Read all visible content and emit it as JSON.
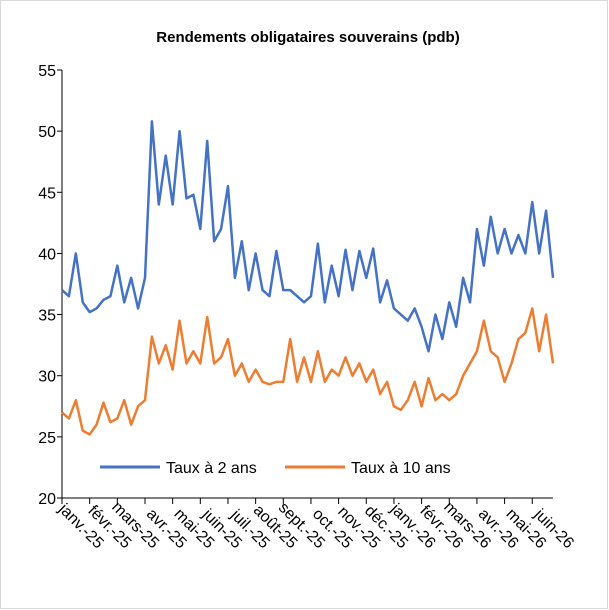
{
  "chart_data": {
    "type": "line",
    "title": "Rendements obligataires souverains (pdb)",
    "categories": [
      "janv.-25",
      null,
      null,
      null,
      "févr.-25",
      null,
      null,
      null,
      "mars-25",
      null,
      null,
      null,
      "avr.-25",
      null,
      null,
      null,
      "mai-25",
      null,
      null,
      null,
      "juin-25",
      null,
      null,
      null,
      "juil.-25",
      null,
      null,
      null,
      "août-25",
      null,
      null,
      null,
      "sept.-25",
      null,
      null,
      null,
      "oct.-25",
      null,
      null,
      null,
      "nov.-25",
      null,
      null,
      null,
      "déc.-25",
      null,
      null,
      null,
      "janv.-26",
      null,
      null,
      null,
      "févr.-26",
      null,
      null,
      null,
      "mars-26",
      null,
      null,
      null,
      "avr.-26",
      null,
      null,
      null,
      "mai-26",
      null,
      null,
      null,
      "juin-26",
      null,
      null,
      null
    ],
    "series": [
      {
        "name": "Taux à 2 ans",
        "color": "#4472c4",
        "values": [
          37,
          36.5,
          40,
          36,
          35.2,
          35.5,
          36.2,
          36.5,
          39,
          36,
          38,
          35.5,
          38,
          50.8,
          44,
          48,
          44,
          50,
          44.5,
          44.8,
          42,
          49.2,
          41,
          42,
          45.5,
          38,
          41,
          37,
          40,
          37,
          36.5,
          40.2,
          37,
          37,
          36.5,
          36,
          36.5,
          40.8,
          36,
          39,
          36.5,
          40.3,
          37,
          40.2,
          38,
          40.4,
          36,
          37.8,
          35.5,
          35,
          34.5,
          35.5,
          34,
          32,
          35,
          33,
          36,
          34,
          38,
          36,
          42,
          39,
          43,
          40,
          42,
          40,
          41.5,
          40,
          44.2,
          40,
          43.5,
          38
        ]
      },
      {
        "name": "Taux à 10 ans",
        "color": "#ed7d31",
        "values": [
          27,
          26.5,
          28,
          25.5,
          25.2,
          26,
          27.8,
          26.2,
          26.5,
          28,
          26,
          27.5,
          28,
          33.2,
          31,
          32.5,
          30.5,
          34.5,
          31,
          32,
          31,
          34.8,
          31,
          31.5,
          33,
          30,
          31,
          29.5,
          30.5,
          29.5,
          29.3,
          29.5,
          29.5,
          33,
          29.5,
          31.5,
          29.5,
          32,
          29.5,
          30.5,
          30,
          31.5,
          30,
          31,
          29.5,
          30.5,
          28.5,
          29.5,
          27.5,
          27.2,
          28,
          29.5,
          27.5,
          29.8,
          28,
          28.5,
          28,
          28.5,
          30,
          31,
          32,
          34.5,
          32,
          31.5,
          29.5,
          31,
          33,
          33.5,
          35.5,
          32,
          35,
          31
        ]
      }
    ],
    "ylim": [
      20,
      55
    ],
    "yticks": [
      20,
      25,
      30,
      35,
      40,
      45,
      50,
      55
    ],
    "legend": "bottom"
  }
}
